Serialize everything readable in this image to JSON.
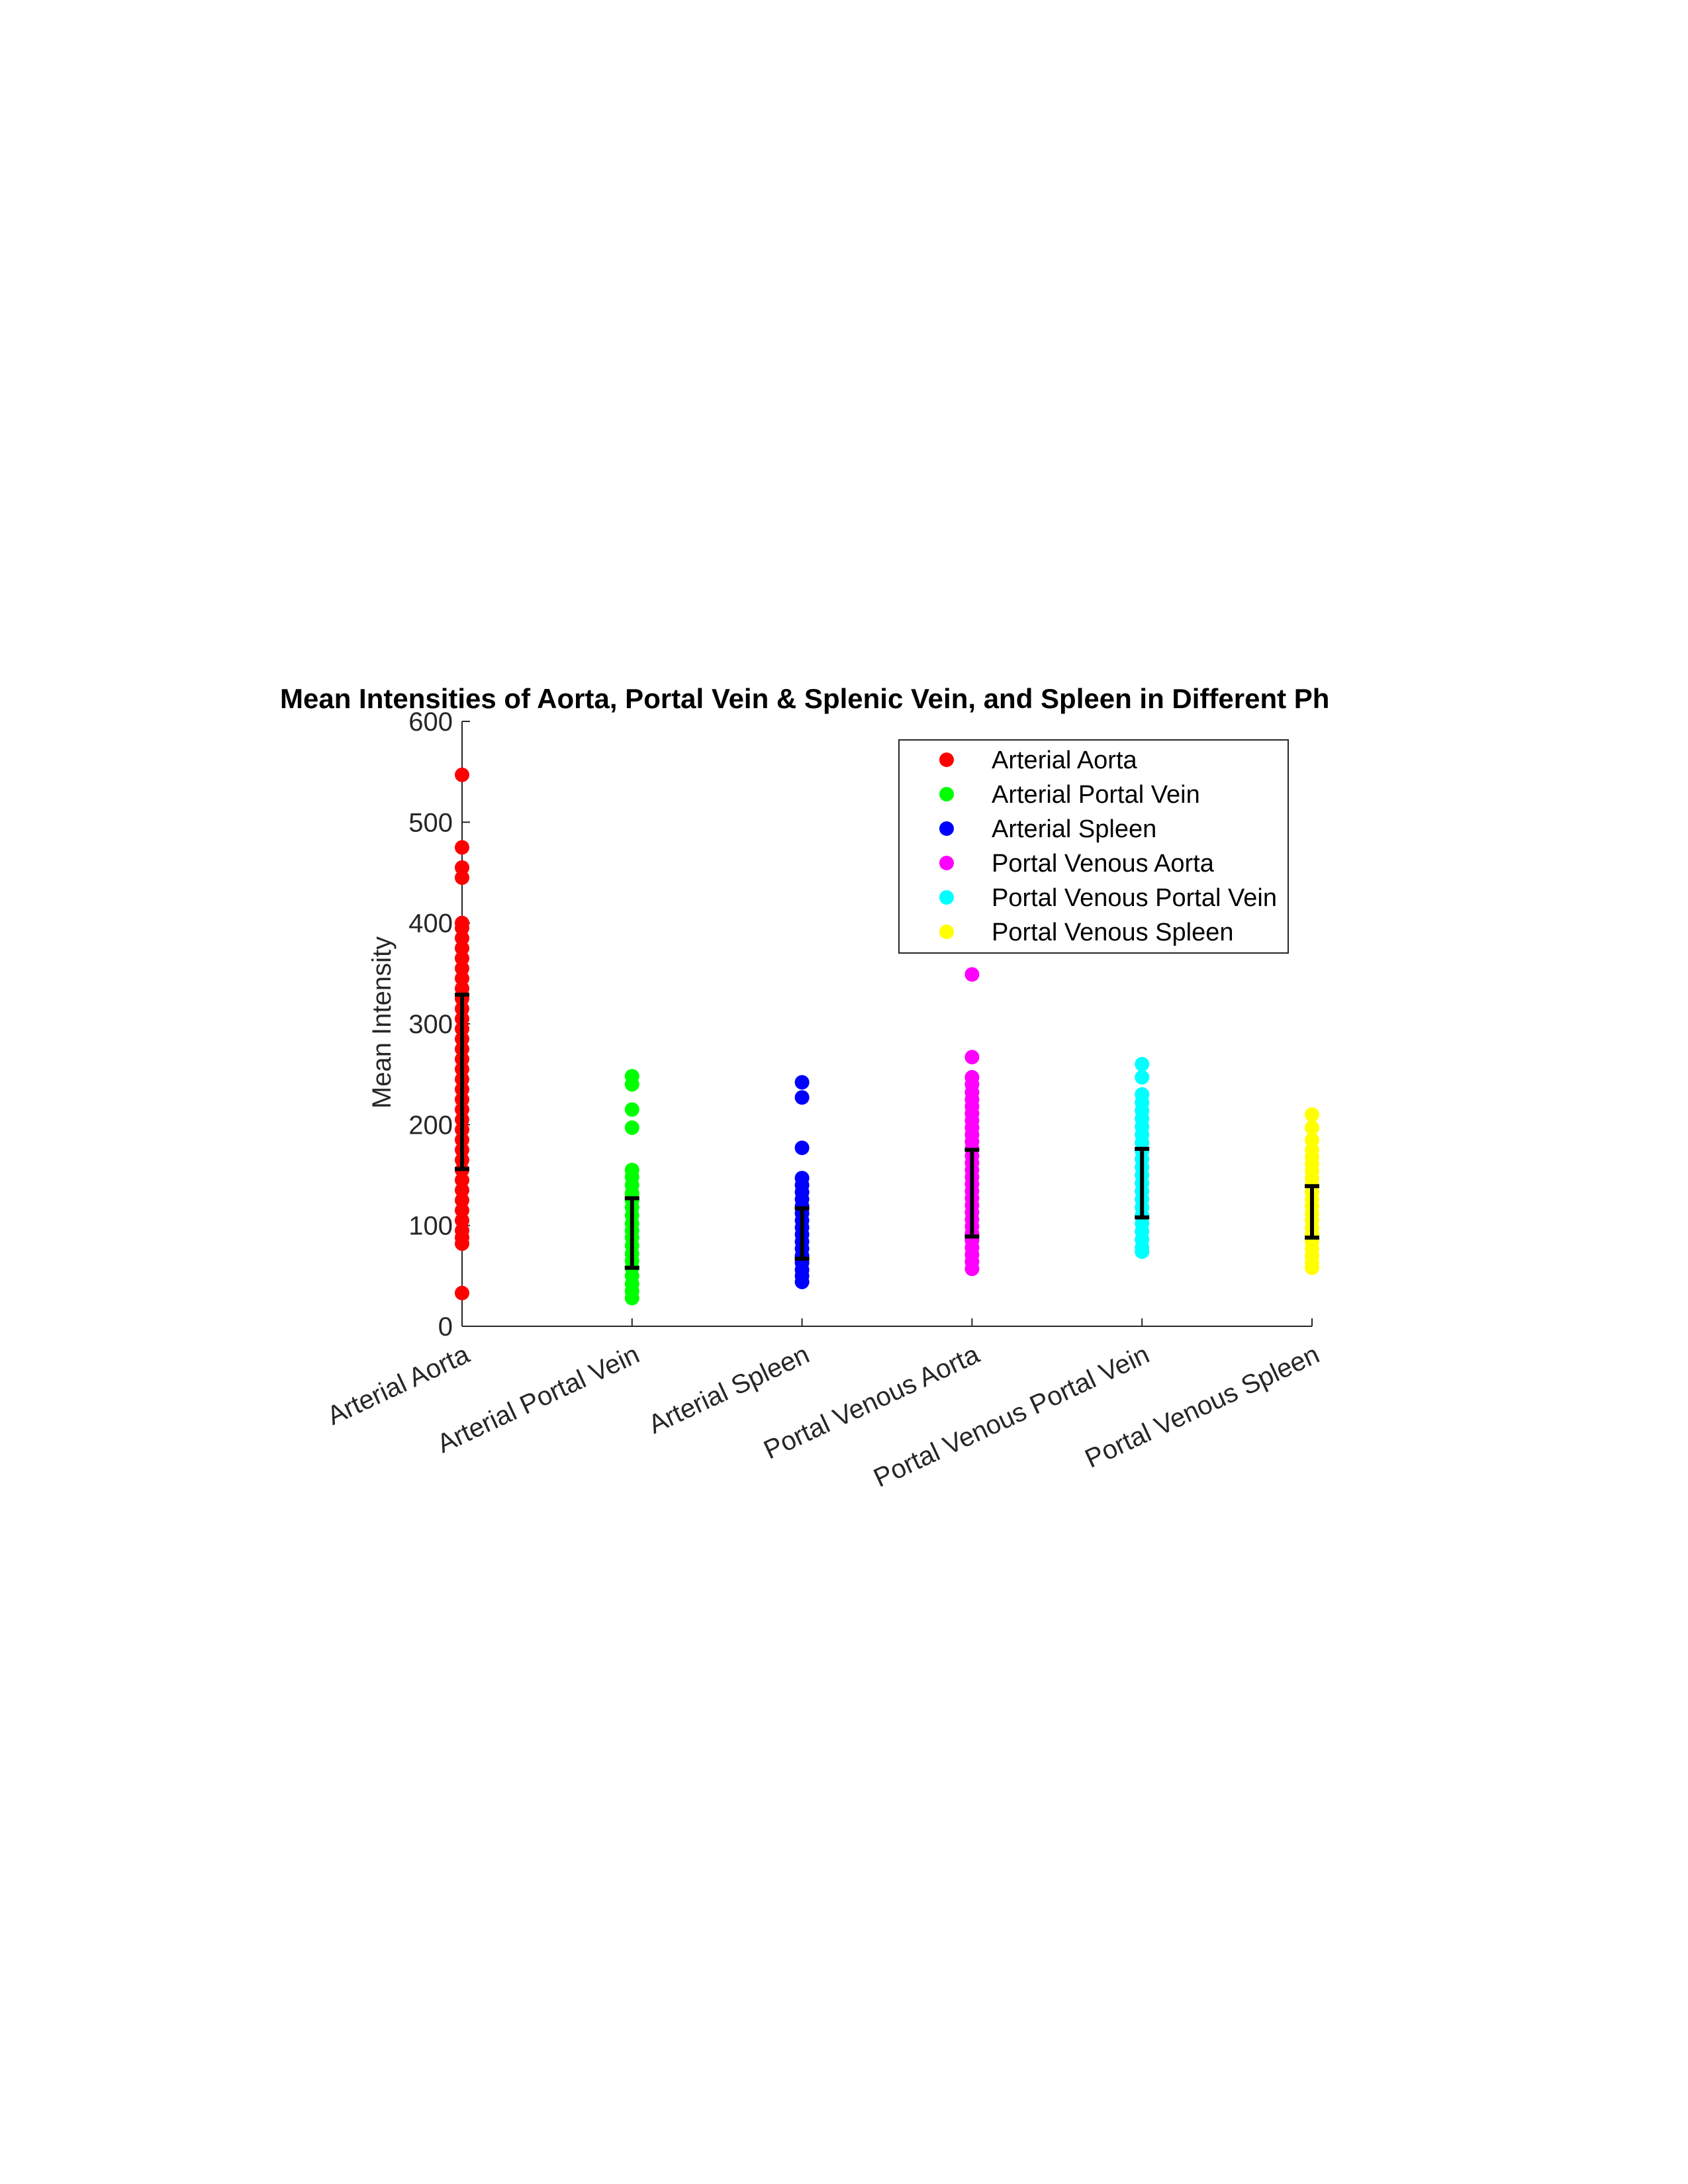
{
  "chart_data": {
    "type": "scatter",
    "title": "Mean Intensities of Aorta, Portal Vein & Splenic Vein, and Spleen in Different Ph",
    "xlabel": "",
    "ylabel": "Mean Intensity",
    "ylim": [
      0,
      600
    ],
    "yticks": [
      0,
      100,
      200,
      300,
      400,
      500,
      600
    ],
    "categories": [
      "Arterial Aorta",
      "Arterial Portal Vein",
      "Arterial Spleen",
      "Portal Venous Aorta",
      "Portal Venous Portal Vein",
      "Portal Venous Spleen"
    ],
    "grid": false,
    "legend_position": "top-right",
    "series": [
      {
        "name": "Arterial Aorta",
        "color": "#ff0000",
        "category": "Arterial Aorta",
        "values": [
          547,
          475,
          455,
          445,
          400,
          395,
          385,
          375,
          365,
          355,
          345,
          335,
          325,
          315,
          305,
          295,
          285,
          275,
          265,
          255,
          245,
          235,
          225,
          215,
          205,
          195,
          185,
          175,
          165,
          155,
          145,
          135,
          125,
          115,
          105,
          95,
          88,
          82,
          33
        ],
        "errorbar": {
          "low": 156,
          "high": 329
        }
      },
      {
        "name": "Arterial Portal Vein",
        "color": "#00ff00",
        "category": "Arterial Portal Vein",
        "values": [
          248,
          240,
          215,
          197,
          155,
          148,
          140,
          132,
          125,
          118,
          110,
          102,
          95,
          88,
          80,
          72,
          65,
          58,
          50,
          42,
          35,
          28
        ],
        "errorbar": {
          "low": 58,
          "high": 127
        }
      },
      {
        "name": "Arterial Spleen",
        "color": "#0000ff",
        "category": "Arterial Spleen",
        "values": [
          242,
          227,
          177,
          147,
          140,
          133,
          126,
          119,
          112,
          105,
          98,
          91,
          84,
          77,
          70,
          63,
          56,
          50,
          44
        ],
        "errorbar": {
          "low": 67,
          "high": 117
        }
      },
      {
        "name": "Portal Venous Aorta",
        "color": "#ff00ff",
        "category": "Portal Venous Aorta",
        "values": [
          349,
          267,
          247,
          240,
          232,
          225,
          218,
          211,
          204,
          197,
          190,
          183,
          176,
          169,
          162,
          155,
          148,
          141,
          134,
          127,
          120,
          113,
          106,
          99,
          92,
          85,
          78,
          71,
          64,
          57
        ],
        "errorbar": {
          "low": 89,
          "high": 175
        }
      },
      {
        "name": "Portal Venous Portal Vein",
        "color": "#00ffff",
        "category": "Portal Venous Portal Vein",
        "values": [
          260,
          247,
          230,
          222,
          214,
          206,
          198,
          190,
          182,
          174,
          166,
          158,
          150,
          142,
          134,
          126,
          118,
          110,
          102,
          94,
          86,
          78,
          74
        ],
        "errorbar": {
          "low": 108,
          "high": 176
        }
      },
      {
        "name": "Portal Venous Spleen",
        "color": "#ffff00",
        "category": "Portal Venous Spleen",
        "values": [
          210,
          197,
          185,
          175,
          168,
          161,
          154,
          147,
          140,
          133,
          126,
          119,
          112,
          105,
          98,
          91,
          84,
          77,
          70,
          63,
          58
        ],
        "errorbar": {
          "low": 88,
          "high": 139
        }
      }
    ]
  }
}
